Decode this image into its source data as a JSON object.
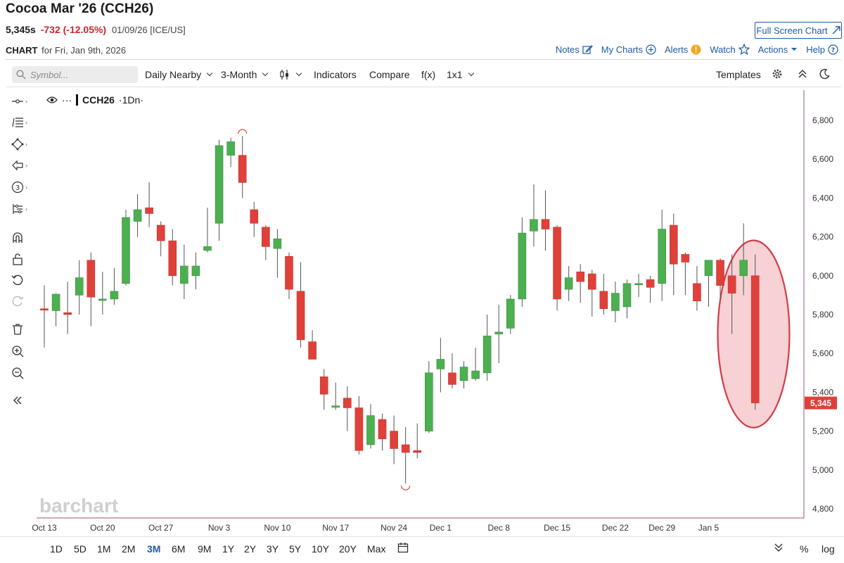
{
  "header": {
    "title": "Cocoa Mar '26 (CCH26)",
    "last": "5,345s",
    "change": "-732 (-12.05%)",
    "meta": "01/09/26 [ICE/US]",
    "chart_label": "CHART",
    "chart_for": "for Fri, Jan 9th, 2026",
    "full_screen": "Full Screen Chart"
  },
  "toplinks": {
    "notes": "Notes",
    "my_charts": "My Charts",
    "alerts": "Alerts",
    "watch": "Watch",
    "actions": "Actions",
    "help": "Help"
  },
  "toolbar": {
    "symbol_placeholder": "Symbol...",
    "period": "Daily Nearby",
    "range": "3-Month",
    "indicators": "Indicators",
    "compare": "Compare",
    "fx": "f(x)",
    "layout": "1x1",
    "templates": "Templates"
  },
  "instrument": {
    "dots": "···",
    "symbol": "CCH26",
    "interval": "·1Dn·"
  },
  "timeframes": [
    "1D",
    "5D",
    "1M",
    "2M",
    "3M",
    "6M",
    "9M",
    "1Y",
    "2Y",
    "3Y",
    "5Y",
    "10Y",
    "20Y",
    "Max"
  ],
  "active_timeframe": "3M",
  "scale_buttons": {
    "percent": "%",
    "log": "log"
  },
  "watermark": "barchart",
  "colors": {
    "up": "#4caf50",
    "down": "#e0403a",
    "price_tag": "#e0403a",
    "axis": "#b0709a",
    "link": "#1e5aa8",
    "highlight": "#f6c9cc"
  },
  "chart_data": {
    "type": "candlestick",
    "ylim": [
      4750,
      6850
    ],
    "yticks": [
      4800,
      5000,
      5200,
      5400,
      5600,
      5800,
      6000,
      6200,
      6400,
      6600,
      6800
    ],
    "ytick_labels": [
      "4,800",
      "5,000",
      "5,200",
      "5,400",
      "5,600",
      "5,800",
      "6,000",
      "6,200",
      "6,400",
      "6,600",
      "6,800"
    ],
    "xtick_labels": [
      "Oct 13",
      "Oct 20",
      "Oct 27",
      "Nov 3",
      "Nov 10",
      "Nov 17",
      "Nov 24",
      "Dec 1",
      "Dec 8",
      "Dec 15",
      "Dec 22",
      "Dec 29",
      "Jan 5"
    ],
    "xtick_index": [
      0,
      5,
      10,
      15,
      20,
      25,
      30,
      34,
      39,
      44,
      49,
      53,
      57
    ],
    "last_price_label": "5,345",
    "last_price": 5345,
    "ohlc": [
      [
        5830,
        5950,
        5630,
        5825
      ],
      [
        5820,
        5910,
        5740,
        5905
      ],
      [
        5810,
        5970,
        5700,
        5800
      ],
      [
        5900,
        6080,
        5800,
        5990
      ],
      [
        6080,
        6120,
        5740,
        5890
      ],
      [
        5880,
        6020,
        5800,
        5880
      ],
      [
        5880,
        6040,
        5850,
        5920
      ],
      [
        5960,
        6340,
        5950,
        6300
      ],
      [
        6280,
        6420,
        6200,
        6340
      ],
      [
        6350,
        6480,
        6250,
        6320
      ],
      [
        6260,
        6280,
        6100,
        6180
      ],
      [
        6180,
        6240,
        5950,
        6000
      ],
      [
        5960,
        6160,
        5880,
        6050
      ],
      [
        6000,
        6120,
        5930,
        6050
      ],
      [
        6130,
        6350,
        6120,
        6150
      ],
      [
        6270,
        6700,
        6180,
        6670
      ],
      [
        6620,
        6710,
        6560,
        6690
      ],
      [
        6620,
        6720,
        6400,
        6480
      ],
      [
        6340,
        6380,
        6200,
        6270
      ],
      [
        6250,
        6260,
        6080,
        6150
      ],
      [
        6140,
        6240,
        5990,
        6190
      ],
      [
        6100,
        6120,
        5880,
        5930
      ],
      [
        5920,
        6070,
        5630,
        5670
      ],
      [
        5660,
        5720,
        5570,
        5570
      ],
      [
        5480,
        5520,
        5310,
        5390
      ],
      [
        5330,
        5450,
        5310,
        5330
      ],
      [
        5370,
        5430,
        5200,
        5320
      ],
      [
        5320,
        5380,
        5080,
        5100
      ],
      [
        5130,
        5340,
        5110,
        5280
      ],
      [
        5260,
        5290,
        5100,
        5160
      ],
      [
        5200,
        5280,
        5030,
        5110
      ],
      [
        5130,
        5220,
        4930,
        5090
      ],
      [
        5100,
        5240,
        5060,
        5090
      ],
      [
        5200,
        5560,
        5190,
        5500
      ],
      [
        5520,
        5680,
        5400,
        5570
      ],
      [
        5500,
        5600,
        5420,
        5440
      ],
      [
        5460,
        5560,
        5420,
        5530
      ],
      [
        5470,
        5630,
        5460,
        5510
      ],
      [
        5500,
        5800,
        5460,
        5690
      ],
      [
        5700,
        5850,
        5550,
        5710
      ],
      [
        5730,
        5900,
        5700,
        5880
      ],
      [
        5880,
        6300,
        5840,
        6220
      ],
      [
        6230,
        6470,
        6150,
        6290
      ],
      [
        6290,
        6440,
        6130,
        6240
      ],
      [
        6250,
        6260,
        5820,
        5880
      ],
      [
        5930,
        6050,
        5870,
        5990
      ],
      [
        6020,
        6060,
        5860,
        5970
      ],
      [
        6010,
        6030,
        5790,
        5930
      ],
      [
        5920,
        6010,
        5800,
        5830
      ],
      [
        5820,
        5970,
        5760,
        5910
      ],
      [
        5840,
        5980,
        5780,
        5960
      ],
      [
        5960,
        6010,
        5890,
        5960
      ],
      [
        5980,
        6000,
        5860,
        5940
      ],
      [
        5960,
        6340,
        5870,
        6240
      ],
      [
        6260,
        6320,
        5900,
        6060
      ],
      [
        6110,
        6120,
        5900,
        6070
      ],
      [
        5960,
        6050,
        5820,
        5870
      ],
      [
        6000,
        6080,
        5840,
        6080
      ],
      [
        6080,
        6090,
        5880,
        5950
      ],
      [
        6000,
        6110,
        5700,
        5910
      ],
      [
        6000,
        6270,
        5900,
        6080
      ],
      [
        6000,
        6110,
        5310,
        5345
      ]
    ]
  }
}
